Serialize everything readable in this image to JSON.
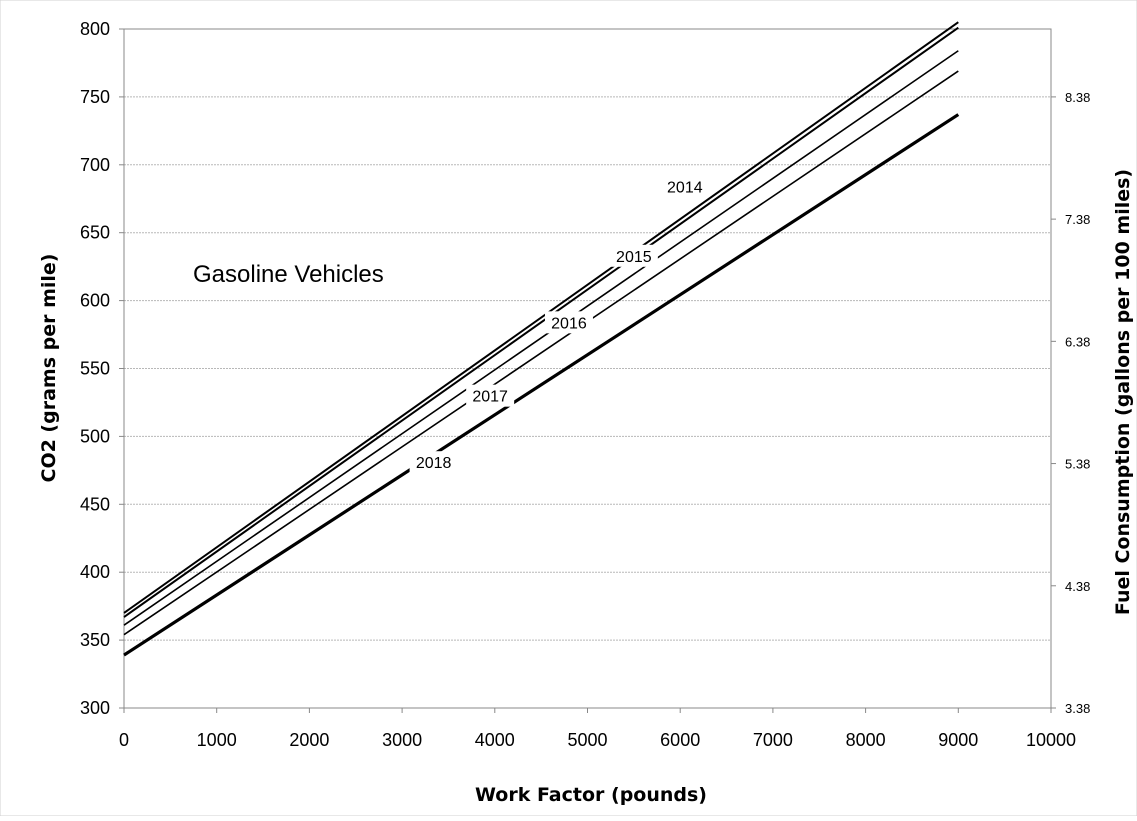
{
  "chart_data": {
    "type": "line",
    "annotation": "Gasoline Vehicles",
    "xlabel": "Work Factor (pounds)",
    "ylabel": "CO2 (grams per mile)",
    "y2label": "Fuel Consumption (gallons per 100 miles)",
    "xlim": [
      0,
      10000
    ],
    "ylim": [
      300,
      800
    ],
    "xticks": [
      0,
      1000,
      2000,
      3000,
      4000,
      5000,
      6000,
      7000,
      8000,
      9000,
      10000
    ],
    "yticks": [
      300,
      350,
      400,
      450,
      500,
      550,
      600,
      650,
      700,
      750,
      800
    ],
    "y2ticks": [
      "3.38",
      "4.38",
      "5.38",
      "6.38",
      "7.38",
      "8.38"
    ],
    "grid": true,
    "series": [
      {
        "label": "2014",
        "x": [
          0,
          9000
        ],
        "y": [
          370,
          805
        ],
        "label_pos": {
          "x": 6050,
          "y": 684
        },
        "weight": 2
      },
      {
        "label": "2015",
        "x": [
          0,
          9000
        ],
        "y": [
          367,
          801
        ],
        "label_pos": {
          "x": 5500,
          "y": 633
        },
        "weight": 2
      },
      {
        "label": "2016",
        "x": [
          0,
          9000
        ],
        "y": [
          361,
          784
        ],
        "label_pos": {
          "x": 4800,
          "y": 584
        },
        "weight": 1.6
      },
      {
        "label": "2017",
        "x": [
          0,
          9000
        ],
        "y": [
          354,
          769
        ],
        "label_pos": {
          "x": 3950,
          "y": 530
        },
        "weight": 1.6
      },
      {
        "label": "2018",
        "x": [
          0,
          9000
        ],
        "y": [
          339,
          737
        ],
        "label_pos": {
          "x": 3340,
          "y": 481
        },
        "weight": 3.2
      }
    ]
  }
}
